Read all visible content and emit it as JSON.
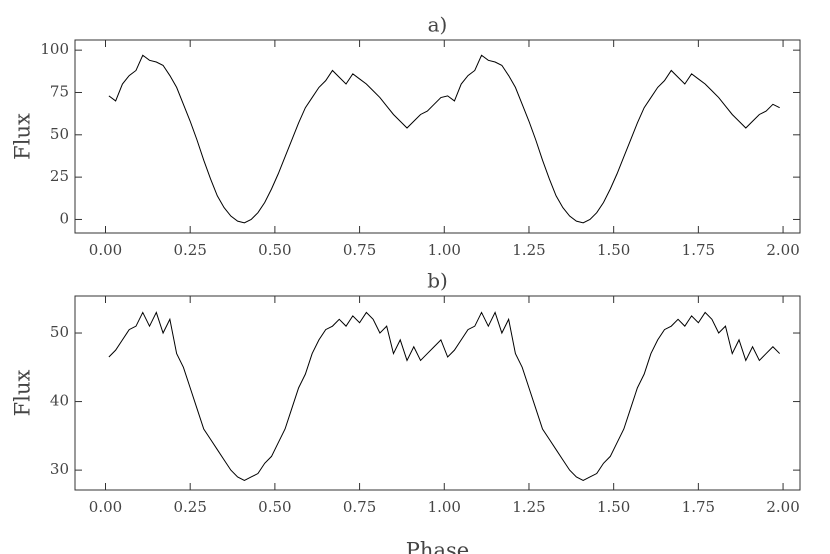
{
  "chart_data": [
    {
      "type": "line",
      "title": "a)",
      "y_label": "Flux",
      "color": "#000000",
      "x": [
        0.01,
        0.03,
        0.05,
        0.07,
        0.09,
        0.11,
        0.13,
        0.15,
        0.17,
        0.19,
        0.21,
        0.23,
        0.25,
        0.27,
        0.29,
        0.31,
        0.33,
        0.35,
        0.37,
        0.39,
        0.41,
        0.43,
        0.45,
        0.47,
        0.49,
        0.51,
        0.53,
        0.55,
        0.57,
        0.59,
        0.61,
        0.63,
        0.65,
        0.67,
        0.69,
        0.71,
        0.73,
        0.75,
        0.77,
        0.79,
        0.81,
        0.83,
        0.85,
        0.87,
        0.89,
        0.91,
        0.93,
        0.95,
        0.97,
        0.99,
        1.01,
        1.03,
        1.05,
        1.07,
        1.09,
        1.11,
        1.13,
        1.15,
        1.17,
        1.19,
        1.21,
        1.23,
        1.25,
        1.27,
        1.29,
        1.31,
        1.33,
        1.35,
        1.37,
        1.39,
        1.41,
        1.43,
        1.45,
        1.47,
        1.49,
        1.51,
        1.53,
        1.55,
        1.57,
        1.59,
        1.61,
        1.63,
        1.65,
        1.67,
        1.69,
        1.71,
        1.73,
        1.75,
        1.77,
        1.79,
        1.81,
        1.83,
        1.85,
        1.87,
        1.89,
        1.91,
        1.93,
        1.95,
        1.97,
        1.99
      ],
      "values": [
        73,
        70,
        80,
        85,
        88,
        97,
        94,
        93,
        91,
        85,
        78,
        68,
        58,
        47,
        35,
        24,
        14,
        7,
        2,
        -1,
        -2,
        0,
        4,
        10,
        18,
        27,
        37,
        47,
        57,
        66,
        72,
        78,
        82,
        88,
        84,
        80,
        86,
        83,
        80,
        76,
        72,
        67,
        62,
        58,
        54,
        58,
        62,
        64,
        68,
        72,
        73,
        70,
        80,
        85,
        88,
        97,
        94,
        93,
        91,
        85,
        78,
        68,
        58,
        47,
        35,
        24,
        14,
        7,
        2,
        -1,
        -2,
        0,
        4,
        10,
        18,
        27,
        37,
        47,
        57,
        66,
        72,
        78,
        82,
        88,
        84,
        80,
        86,
        83,
        80,
        76,
        72,
        67,
        62,
        58,
        54,
        58,
        62,
        64,
        68,
        66
      ],
      "xlim": [
        -0.09,
        2.05
      ],
      "ylim": [
        -8,
        106
      ],
      "xticks": [
        {
          "value": 0,
          "label": "0.00"
        },
        {
          "value": 0.25,
          "label": "0.25"
        },
        {
          "value": 0.5,
          "label": "0.50"
        },
        {
          "value": 0.75,
          "label": "0.75"
        },
        {
          "value": 1,
          "label": "1.00"
        },
        {
          "value": 1.25,
          "label": "1.25"
        },
        {
          "value": 1.5,
          "label": "1.50"
        },
        {
          "value": 1.75,
          "label": "1.75"
        },
        {
          "value": 2,
          "label": "2.00"
        }
      ],
      "yticks": [
        0,
        25,
        50,
        75,
        100
      ]
    },
    {
      "type": "line",
      "title": "b)",
      "y_label": "Flux",
      "x_label": "Phase",
      "color": "#000000",
      "x": [
        0.01,
        0.03,
        0.05,
        0.07,
        0.09,
        0.11,
        0.13,
        0.15,
        0.17,
        0.19,
        0.21,
        0.23,
        0.25,
        0.27,
        0.29,
        0.31,
        0.33,
        0.35,
        0.37,
        0.39,
        0.41,
        0.43,
        0.45,
        0.47,
        0.49,
        0.51,
        0.53,
        0.55,
        0.57,
        0.59,
        0.61,
        0.63,
        0.65,
        0.67,
        0.69,
        0.71,
        0.73,
        0.75,
        0.77,
        0.79,
        0.81,
        0.83,
        0.85,
        0.87,
        0.89,
        0.91,
        0.93,
        0.95,
        0.97,
        0.99,
        1.01,
        1.03,
        1.05,
        1.07,
        1.09,
        1.11,
        1.13,
        1.15,
        1.17,
        1.19,
        1.21,
        1.23,
        1.25,
        1.27,
        1.29,
        1.31,
        1.33,
        1.35,
        1.37,
        1.39,
        1.41,
        1.43,
        1.45,
        1.47,
        1.49,
        1.51,
        1.53,
        1.55,
        1.57,
        1.59,
        1.61,
        1.63,
        1.65,
        1.67,
        1.69,
        1.71,
        1.73,
        1.75,
        1.77,
        1.79,
        1.81,
        1.83,
        1.85,
        1.87,
        1.89,
        1.91,
        1.93,
        1.95,
        1.97,
        1.99
      ],
      "values": [
        46.5,
        47.5,
        49,
        50.5,
        51,
        53,
        51,
        53,
        50,
        52,
        47,
        45,
        42,
        39,
        36,
        34.5,
        33,
        31.5,
        30,
        29,
        28.5,
        29,
        29.5,
        31,
        32,
        34,
        36,
        39,
        42,
        44,
        47,
        49,
        50.5,
        51,
        52,
        51,
        52.5,
        51.5,
        53,
        52,
        50,
        51,
        47,
        49,
        46,
        48,
        46,
        47,
        48,
        49,
        46.5,
        47.5,
        49,
        50.5,
        51,
        53,
        51,
        53,
        50,
        52,
        47,
        45,
        42,
        39,
        36,
        34.5,
        33,
        31.5,
        30,
        29,
        28.5,
        29,
        29.5,
        31,
        32,
        34,
        36,
        39,
        42,
        44,
        47,
        49,
        50.5,
        51,
        52,
        51,
        52.5,
        51.5,
        53,
        52,
        50,
        51,
        47,
        49,
        46,
        48,
        46,
        47,
        48,
        47
      ],
      "xlim": [
        -0.09,
        2.05
      ],
      "ylim": [
        27.1,
        55.4
      ],
      "xticks": [
        {
          "value": 0,
          "label": "0.00"
        },
        {
          "value": 0.25,
          "label": "0.25"
        },
        {
          "value": 0.5,
          "label": "0.50"
        },
        {
          "value": 0.75,
          "label": "0.75"
        },
        {
          "value": 1,
          "label": "1.00"
        },
        {
          "value": 1.25,
          "label": "1.25"
        },
        {
          "value": 1.5,
          "label": "1.50"
        },
        {
          "value": 1.75,
          "label": "1.75"
        },
        {
          "value": 2,
          "label": "2.00"
        }
      ],
      "yticks": [
        30,
        40,
        50
      ]
    }
  ]
}
